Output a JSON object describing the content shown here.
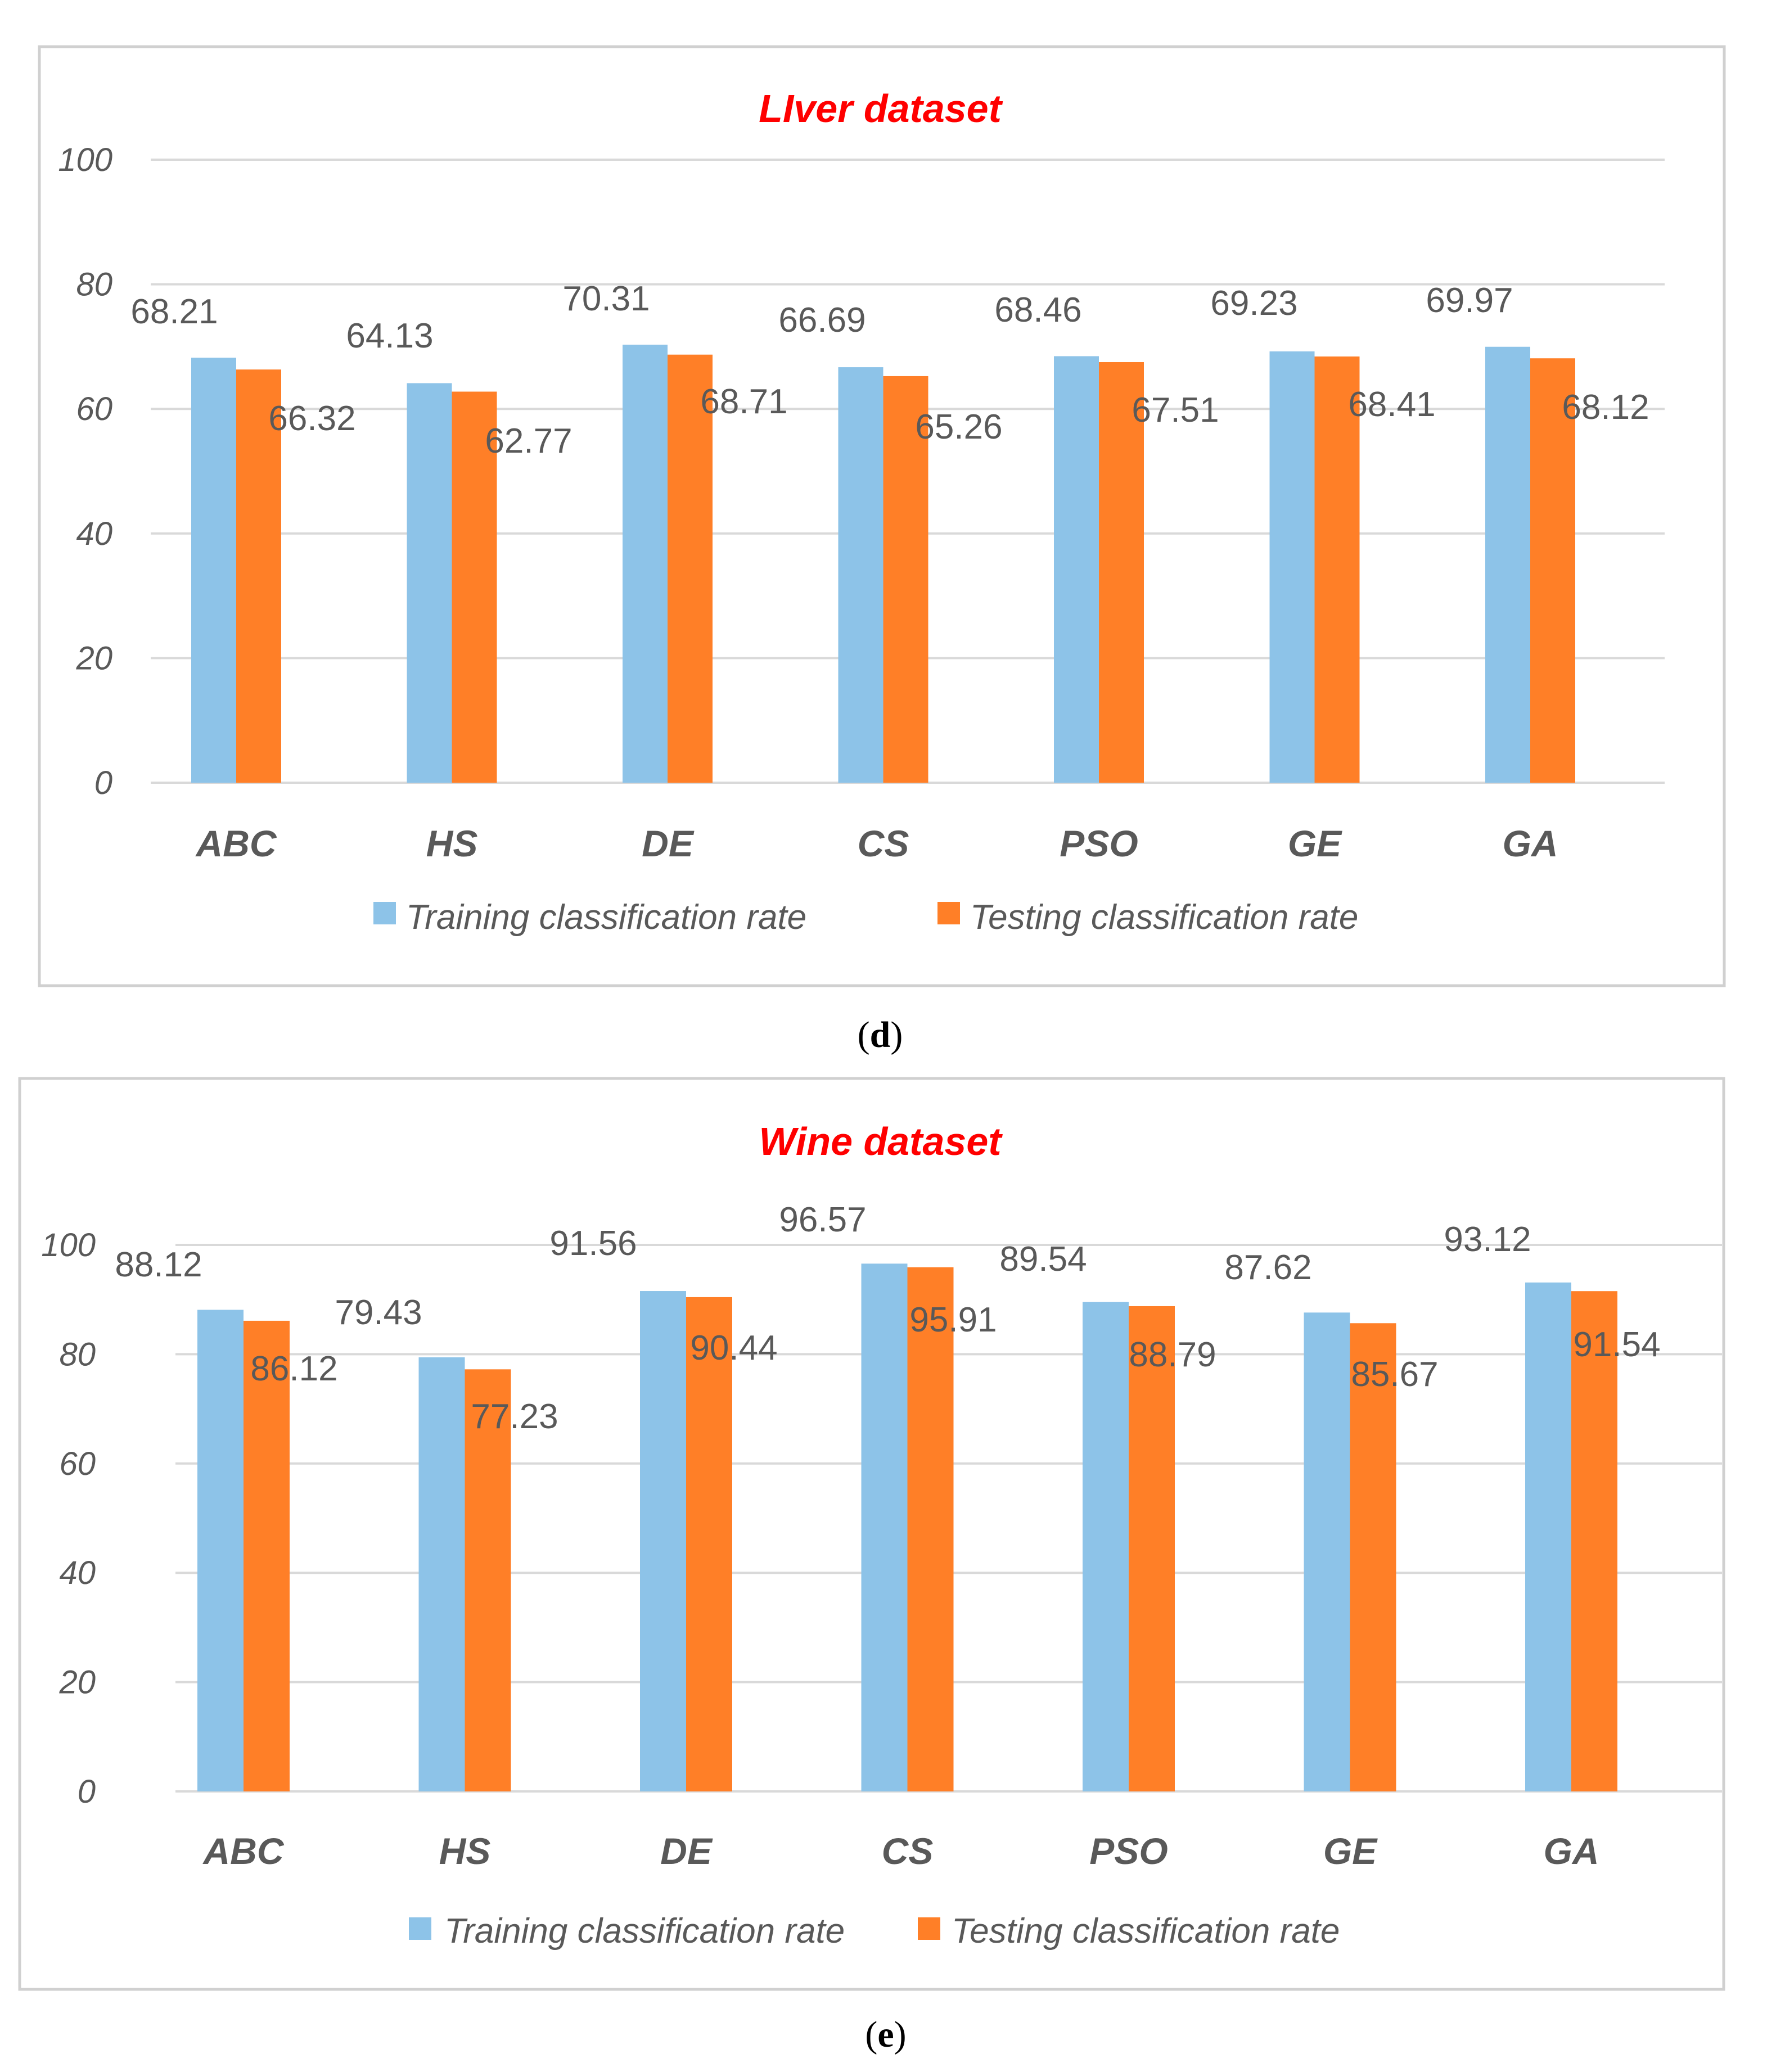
{
  "colors": {
    "train": "#8dc3e8",
    "test": "#ff7f27"
  },
  "chart_data": [
    {
      "type": "bar",
      "title": "LIver dataset",
      "caption_open": "(",
      "caption_letter": "d",
      "caption_close": ")",
      "categories": [
        "ABC",
        "HS",
        "DE",
        "CS",
        "PSO",
        "GE",
        "GA"
      ],
      "series": [
        {
          "name": "Training classification rate",
          "values": [
            68.21,
            64.13,
            70.31,
            66.69,
            68.46,
            69.23,
            69.97
          ]
        },
        {
          "name": "Testing classification rate",
          "values": [
            66.32,
            62.77,
            68.71,
            65.26,
            67.51,
            68.41,
            68.12
          ]
        }
      ],
      "ylim": [
        0,
        100
      ],
      "yticks": [
        "0",
        "20",
        "40",
        "60",
        "80",
        "100"
      ],
      "xlabel": "",
      "ylabel": ""
    },
    {
      "type": "bar",
      "title": "Wine dataset",
      "caption_open": "(",
      "caption_letter": "e",
      "caption_close": ")",
      "categories": [
        "ABC",
        "HS",
        "DE",
        "CS",
        "PSO",
        "GE",
        "GA"
      ],
      "series": [
        {
          "name": "Training classification rate",
          "values": [
            88.12,
            79.43,
            91.56,
            96.57,
            89.54,
            87.62,
            93.12
          ]
        },
        {
          "name": "Testing classification rate",
          "values": [
            86.12,
            77.23,
            90.44,
            95.91,
            88.79,
            85.67,
            91.54
          ]
        }
      ],
      "ylim": [
        0,
        100
      ],
      "yticks": [
        "0",
        "20",
        "40",
        "60",
        "80",
        "100"
      ],
      "xlabel": "",
      "ylabel": ""
    }
  ]
}
